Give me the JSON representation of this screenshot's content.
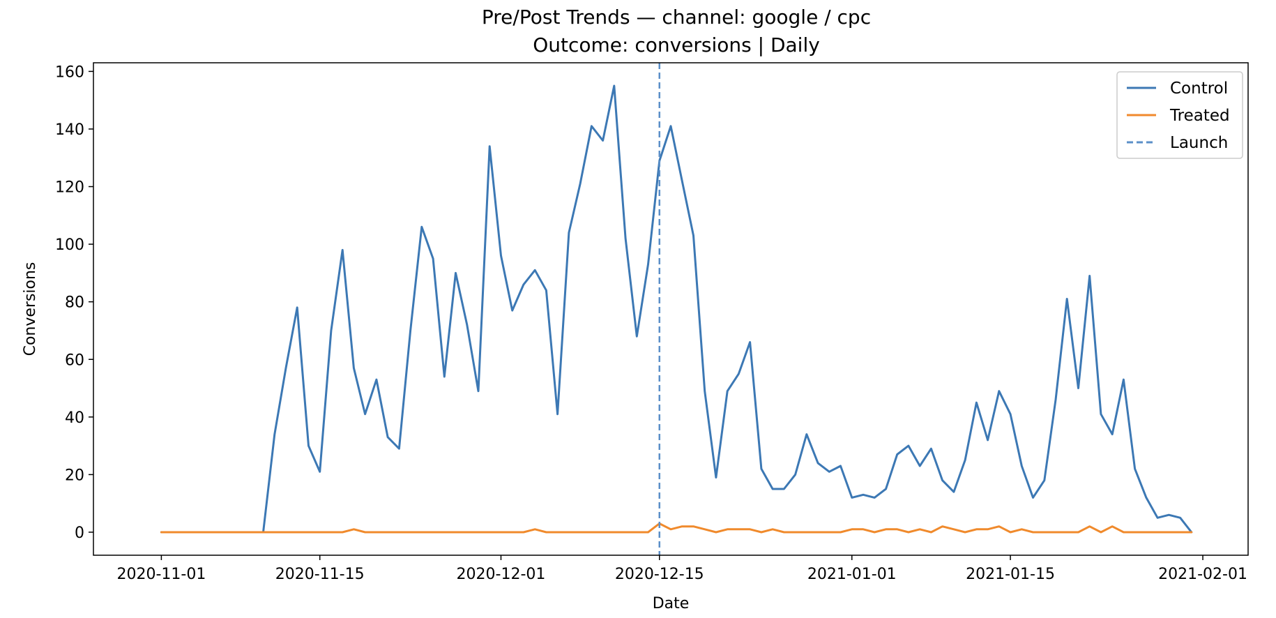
{
  "chart_data": {
    "type": "line",
    "title": "Pre/Post Trends — channel: google / cpc",
    "subtitle": "Outcome: conversions | Daily",
    "xlabel": "Date",
    "ylabel": "Conversions",
    "x_start": "2020-11-01",
    "x_ticks": [
      "2020-11-01",
      "2020-11-15",
      "2020-12-01",
      "2020-12-15",
      "2021-01-01",
      "2021-01-15",
      "2021-02-01"
    ],
    "xlim": [
      "2020-10-26",
      "2021-02-05"
    ],
    "y_ticks": [
      0,
      20,
      40,
      60,
      80,
      100,
      120,
      140,
      160
    ],
    "ylim": [
      -8,
      163
    ],
    "legend_position": "top-right",
    "series": [
      {
        "name": "Control",
        "color": "#3c78b4",
        "values": [
          0,
          0,
          0,
          0,
          0,
          0,
          0,
          0,
          0,
          0,
          34,
          57,
          78,
          30,
          21,
          70,
          98,
          57,
          41,
          53,
          33,
          29,
          70,
          106,
          95,
          54,
          90,
          72,
          49,
          134,
          96,
          77,
          86,
          91,
          84,
          41,
          104,
          121,
          141,
          136,
          155,
          102,
          68,
          93,
          129,
          141,
          122,
          103,
          49,
          19,
          49,
          55,
          66,
          22,
          15,
          15,
          20,
          34,
          24,
          21,
          23,
          12,
          13,
          12,
          15,
          27,
          30,
          23,
          29,
          18,
          14,
          25,
          45,
          32,
          49,
          41,
          23,
          12,
          18,
          46,
          81,
          50,
          89,
          41,
          34,
          53,
          22,
          12,
          5,
          6,
          5,
          0
        ]
      },
      {
        "name": "Treated",
        "color": "#f08a2c",
        "values": [
          0,
          0,
          0,
          0,
          0,
          0,
          0,
          0,
          0,
          0,
          0,
          0,
          0,
          0,
          0,
          0,
          0,
          1,
          0,
          0,
          0,
          0,
          0,
          0,
          0,
          0,
          0,
          0,
          0,
          0,
          0,
          0,
          0,
          1,
          0,
          0,
          0,
          0,
          0,
          0,
          0,
          0,
          0,
          0,
          3,
          1,
          2,
          2,
          1,
          0,
          1,
          1,
          1,
          0,
          1,
          0,
          0,
          0,
          0,
          0,
          0,
          1,
          1,
          0,
          1,
          1,
          0,
          1,
          0,
          2,
          1,
          0,
          1,
          1,
          2,
          0,
          1,
          0,
          0,
          0,
          0,
          0,
          2,
          0,
          2,
          0,
          0,
          0,
          0,
          0,
          0,
          0
        ]
      }
    ],
    "launch": {
      "name": "Launch",
      "date": "2020-12-15",
      "color": "#5b8fc8"
    }
  }
}
